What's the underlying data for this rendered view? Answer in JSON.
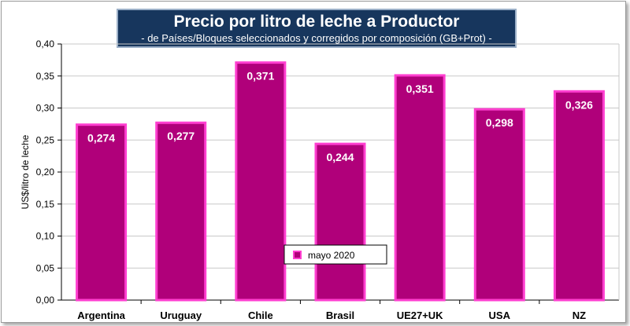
{
  "chart_data": {
    "type": "bar",
    "title": "Precio por litro de leche a Productor",
    "subtitle": "-  de Países/Bloques seleccionados y corregidos por composición (GB+Prot) -",
    "ylabel": "US$/litro de leche",
    "xlabel": "",
    "categories": [
      "Argentina",
      "Uruguay",
      "Chile",
      "Brasil",
      "UE27+UK",
      "USA",
      "NZ"
    ],
    "series": [
      {
        "name": "mayo 2020",
        "values": [
          0.274,
          0.277,
          0.371,
          0.244,
          0.351,
          0.298,
          0.326
        ],
        "labels": [
          "0,274",
          "0,277",
          "0,371",
          "0,244",
          "0,351",
          "0,298",
          "0,326"
        ]
      }
    ],
    "ylim": [
      0,
      0.4
    ],
    "yticks": [
      "0,00",
      "0,05",
      "0,10",
      "0,15",
      "0,20",
      "0,25",
      "0,30",
      "0,35",
      "0,40"
    ],
    "grid": true,
    "legend_position": "center",
    "colors": {
      "bar": "#b0007a",
      "bar_edge": "#ff3fd0",
      "title_bg": "#17365d"
    }
  }
}
